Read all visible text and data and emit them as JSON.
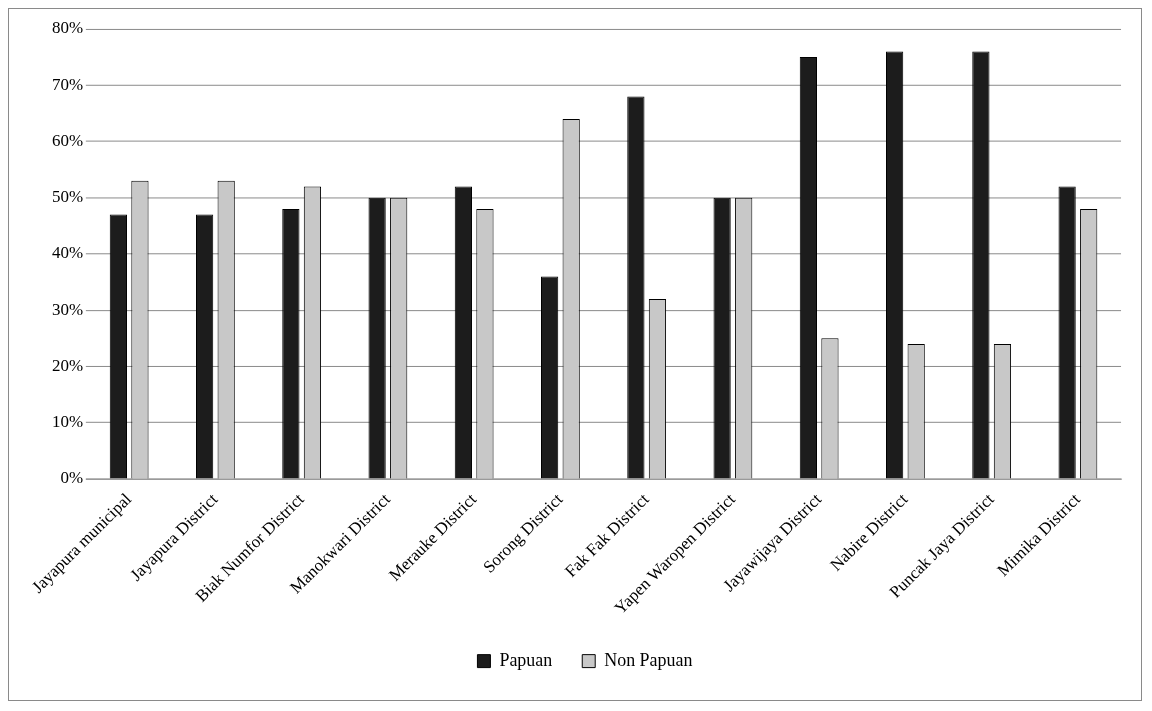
{
  "chart_data": {
    "type": "bar",
    "categories": [
      "Jayapura municipal",
      "Jayapura District",
      "Biak Numfor District",
      "Manokwari District",
      "Merauke District",
      "Sorong District",
      "Fak Fak District",
      "Yapen Waropen District",
      "Jayawijaya District",
      "Nabire District",
      "Puncak Jaya District",
      "Mimika District"
    ],
    "series": [
      {
        "name": "Papuan",
        "color": "#1c1c1c",
        "values": [
          47,
          47,
          48,
          50,
          52,
          36,
          68,
          50,
          75,
          76,
          76,
          52
        ]
      },
      {
        "name": "Non Papuan",
        "color": "#c8c8c8",
        "values": [
          53,
          53,
          52,
          50,
          48,
          64,
          32,
          50,
          25,
          24,
          24,
          48
        ]
      }
    ],
    "ylim": [
      0,
      80
    ],
    "yticks": [
      {
        "value": 0,
        "label": "0%"
      },
      {
        "value": 10,
        "label": "10%"
      },
      {
        "value": 20,
        "label": "20%"
      },
      {
        "value": 30,
        "label": "30%"
      },
      {
        "value": 40,
        "label": "40%"
      },
      {
        "value": 50,
        "label": "50%"
      },
      {
        "value": 60,
        "label": "60%"
      },
      {
        "value": 70,
        "label": "70%"
      },
      {
        "value": 80,
        "label": "80%"
      }
    ],
    "grid": "y",
    "legend": "bottom"
  }
}
